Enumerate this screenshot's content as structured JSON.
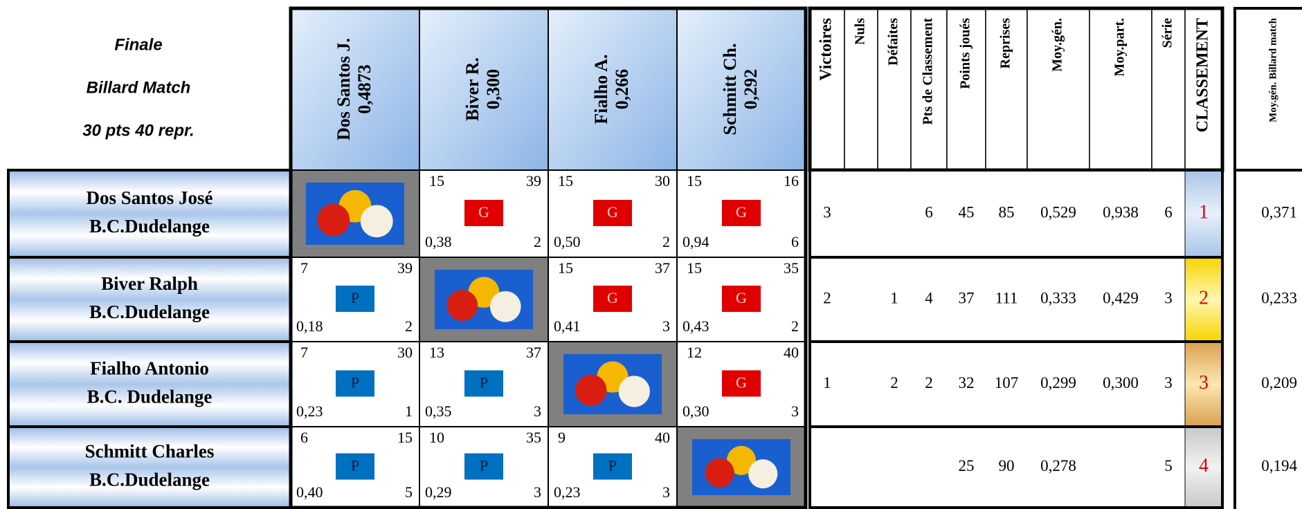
{
  "header": {
    "lines": [
      "Finale",
      "Billard  Match",
      "30 pts    40 repr."
    ]
  },
  "players": [
    {
      "name": "Dos Santos J.",
      "average": "0,4873"
    },
    {
      "name": "Biver R.",
      "average": "0,300"
    },
    {
      "name": "Fialho A.",
      "average": "0,266"
    },
    {
      "name": "Schmitt Ch.",
      "average": "0,292"
    }
  ],
  "stat_headers": [
    "Victoires",
    "Nuls",
    "Défaites",
    "Pts de Classement",
    "Points joués",
    "Reprises",
    "Moy.gén.",
    "Moy.part.",
    "Série",
    "CLASSEMENT"
  ],
  "side_header": "Moy.gén. Billard match",
  "rows": [
    {
      "name": "Dos Santos José",
      "club": "B.C.Dudelange",
      "cells": [
        null,
        {
          "points": 15,
          "reprises": 39,
          "result": "G",
          "average": "0,38",
          "serie": 2
        },
        {
          "points": 15,
          "reprises": 30,
          "result": "G",
          "average": "0,50",
          "serie": 2
        },
        {
          "points": 15,
          "reprises": 16,
          "result": "G",
          "average": "0,94",
          "serie": 6
        }
      ],
      "stats": [
        3,
        null,
        null,
        6,
        45,
        85,
        "0,529",
        "0,938",
        6,
        1
      ],
      "moy_billard": "0,371"
    },
    {
      "name": "Biver Ralph",
      "club": "B.C.Dudelange",
      "cells": [
        {
          "points": 7,
          "reprises": 39,
          "result": "P",
          "average": "0,18",
          "serie": 2
        },
        null,
        {
          "points": 15,
          "reprises": 37,
          "result": "G",
          "average": "0,41",
          "serie": 3
        },
        {
          "points": 15,
          "reprises": 35,
          "result": "G",
          "average": "0,43",
          "serie": 2
        }
      ],
      "stats": [
        2,
        null,
        1,
        4,
        37,
        111,
        "0,333",
        "0,429",
        3,
        2
      ],
      "moy_billard": "0,233"
    },
    {
      "name": "Fialho Antonio",
      "club": "B.C. Dudelange",
      "cells": [
        {
          "points": 7,
          "reprises": 30,
          "result": "P",
          "average": "0,23",
          "serie": 1
        },
        {
          "points": 13,
          "reprises": 37,
          "result": "P",
          "average": "0,35",
          "serie": 3
        },
        null,
        {
          "points": 12,
          "reprises": 40,
          "result": "G",
          "average": "0,30",
          "serie": 3
        }
      ],
      "stats": [
        1,
        null,
        2,
        2,
        32,
        107,
        "0,299",
        "0,300",
        3,
        3
      ],
      "moy_billard": "0,209"
    },
    {
      "name": "Schmitt Charles",
      "club": "B.C.Dudelange",
      "cells": [
        {
          "points": 6,
          "reprises": 15,
          "result": "P",
          "average": "0,40",
          "serie": 5
        },
        {
          "points": 10,
          "reprises": 35,
          "result": "P",
          "average": "0,29",
          "serie": 3
        },
        {
          "points": 9,
          "reprises": 40,
          "result": "P",
          "average": "0,23",
          "serie": 3
        },
        null
      ],
      "stats": [
        null,
        null,
        null,
        null,
        25,
        90,
        "0,278",
        null,
        5,
        4
      ],
      "moy_billard": "0,194"
    }
  ]
}
